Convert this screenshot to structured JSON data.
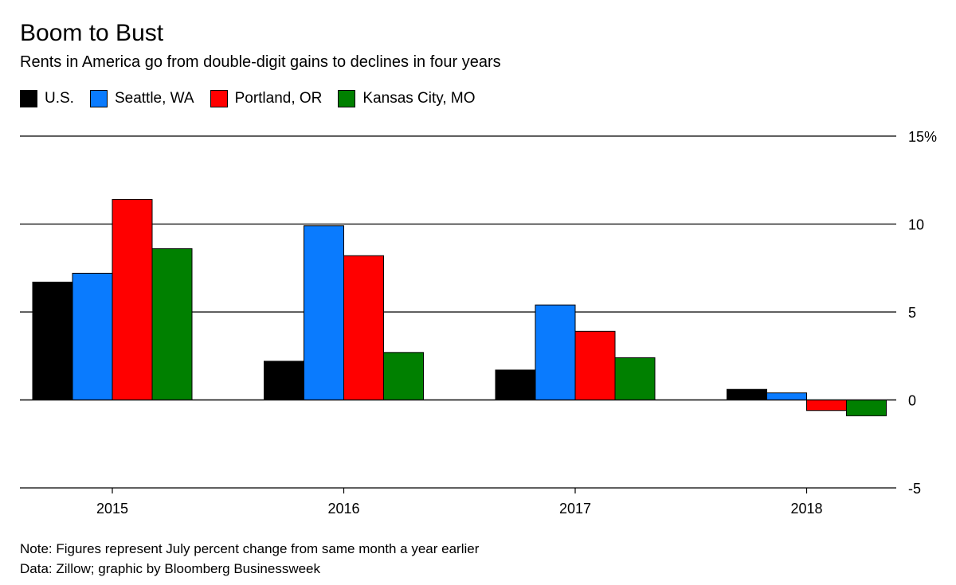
{
  "chart_data": {
    "type": "bar",
    "title": "Boom to Bust",
    "subtitle": "Rents in America go from double-digit gains to declines in four years",
    "categories": [
      "2015",
      "2016",
      "2017",
      "2018"
    ],
    "series": [
      {
        "name": "U.S.",
        "color": "#000000",
        "values": [
          6.7,
          2.2,
          1.7,
          0.6
        ]
      },
      {
        "name": "Seattle, WA",
        "color": "#0a7bfe",
        "values": [
          7.2,
          9.9,
          5.4,
          0.4
        ]
      },
      {
        "name": "Portland, OR",
        "color": "#ff0000",
        "values": [
          11.4,
          8.2,
          3.9,
          -0.6
        ]
      },
      {
        "name": "Kansas City, MO",
        "color": "#008000",
        "values": [
          8.6,
          2.7,
          2.4,
          -0.9
        ]
      }
    ],
    "ylim": [
      -5,
      15
    ],
    "yticks": [
      {
        "value": 15,
        "label": "15%"
      },
      {
        "value": 10,
        "label": "10"
      },
      {
        "value": 5,
        "label": "5"
      },
      {
        "value": 0,
        "label": "0"
      },
      {
        "value": -5,
        "label": "-5"
      }
    ],
    "grid": true,
    "legend_position": "top-left",
    "yaxis_position": "right"
  },
  "notes": {
    "note": "Note: Figures represent July percent change from same month a year earlier",
    "source": "Data: Zillow; graphic by Bloomberg Businessweek"
  }
}
